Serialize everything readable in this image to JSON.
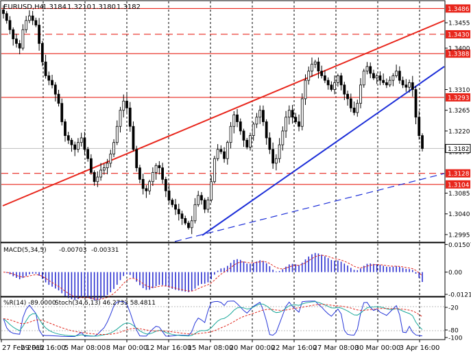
{
  "chart_data": [
    {
      "type": "candlestick",
      "title": "EURUSD,H4",
      "quote": {
        "open": "1.3184",
        "high": "1.3210",
        "low": "1.3180",
        "close": "1.3182"
      },
      "ylim": [
        1.298,
        1.35
      ],
      "ticks": [
        "1.3455",
        "1.3400",
        "1.3310",
        "1.3265",
        "1.3220",
        "1.3175",
        "1.3085",
        "1.3040",
        "1.2995"
      ],
      "levels": [
        {
          "label": "1.3486",
          "value": 1.3486,
          "style": "solid"
        },
        {
          "label": "1.3430",
          "value": 1.343,
          "style": "dashed"
        },
        {
          "label": "1.3388",
          "value": 1.3388,
          "style": "solid"
        },
        {
          "label": "1.3293",
          "value": 1.3293,
          "style": "solid"
        },
        {
          "label": "1.3128",
          "value": 1.3128,
          "style": "dashed"
        },
        {
          "label": "1.3104",
          "value": 1.3104,
          "style": "solid"
        }
      ],
      "current_price": {
        "label": "1.3182",
        "value": 1.3182
      },
      "closes": [
        1.3475,
        1.346,
        1.344,
        1.342,
        1.341,
        1.34,
        1.344,
        1.346,
        1.347,
        1.346,
        1.345,
        1.341,
        1.337,
        1.334,
        1.333,
        1.332,
        1.33,
        1.328,
        1.324,
        1.321,
        1.32,
        1.319,
        1.318,
        1.3195,
        1.3205,
        1.318,
        1.316,
        1.313,
        1.311,
        1.312,
        1.3135,
        1.314,
        1.315,
        1.317,
        1.3195,
        1.323,
        1.3265,
        1.3285,
        1.327,
        1.323,
        1.318,
        1.314,
        1.3115,
        1.3095,
        1.309,
        1.311,
        1.313,
        1.3145,
        1.314,
        1.3115,
        1.309,
        1.307,
        1.306,
        1.305,
        1.304,
        1.303,
        1.302,
        1.301,
        1.3025,
        1.306,
        1.308,
        1.307,
        1.305,
        1.307,
        1.311,
        1.316,
        1.318,
        1.3175,
        1.316,
        1.3195,
        1.323,
        1.3255,
        1.324,
        1.322,
        1.32,
        1.3185,
        1.321,
        1.3235,
        1.325,
        1.3265,
        1.324,
        1.3205,
        1.318,
        1.315,
        1.316,
        1.319,
        1.322,
        1.325,
        1.3265,
        1.325,
        1.324,
        1.323,
        1.329,
        1.333,
        1.335,
        1.3365,
        1.337,
        1.335,
        1.334,
        1.333,
        1.332,
        1.331,
        1.3325,
        1.334,
        1.332,
        1.33,
        1.329,
        1.327,
        1.326,
        1.328,
        1.332,
        1.335,
        1.336,
        1.3345,
        1.3335,
        1.334,
        1.333,
        1.3325,
        1.332,
        1.333,
        1.334,
        1.335,
        1.333,
        1.332,
        1.3315,
        1.3325,
        1.331,
        1.325,
        1.321,
        1.3182
      ]
    },
    {
      "type": "histogram",
      "title": "MACD(5,34,5)",
      "values_text": [
        "-0.00703",
        "-0.00331"
      ],
      "ylim": [
        -0.0125,
        0.0152
      ],
      "ticks": [
        "0.01507",
        "0.00",
        "-0.01214"
      ]
    },
    {
      "type": "line",
      "title": "%R(14) -89.0000",
      "subtitle": "Stoch(34,5,13) 46.2733 58.4811",
      "ylim": [
        -100,
        0
      ],
      "ticks": [
        "-20",
        "-80",
        "-100"
      ]
    }
  ],
  "x_axis": {
    "labels": [
      "27 Feb 2012",
      "29 Feb 16:00",
      "5 Mar 08:00",
      "8 Mar 00:00",
      "12 Mar 16:00",
      "15 Mar 08:00",
      "20 Mar 00:00",
      "22 Mar 16:00",
      "27 Mar 08:00",
      "30 Mar 00:00",
      "3 Apr 16:00"
    ]
  },
  "colors": {
    "background": "#ffffff",
    "candle": "#000000",
    "level": "#e8261c",
    "trend_blue": "#1c2ed8",
    "macd_bar": "#2a2ed0",
    "macd_signal": "#e0261c",
    "percent_r": "#2636d8",
    "stoch_signal": "#1aa89a",
    "stoch_slow": "#e0261c"
  }
}
